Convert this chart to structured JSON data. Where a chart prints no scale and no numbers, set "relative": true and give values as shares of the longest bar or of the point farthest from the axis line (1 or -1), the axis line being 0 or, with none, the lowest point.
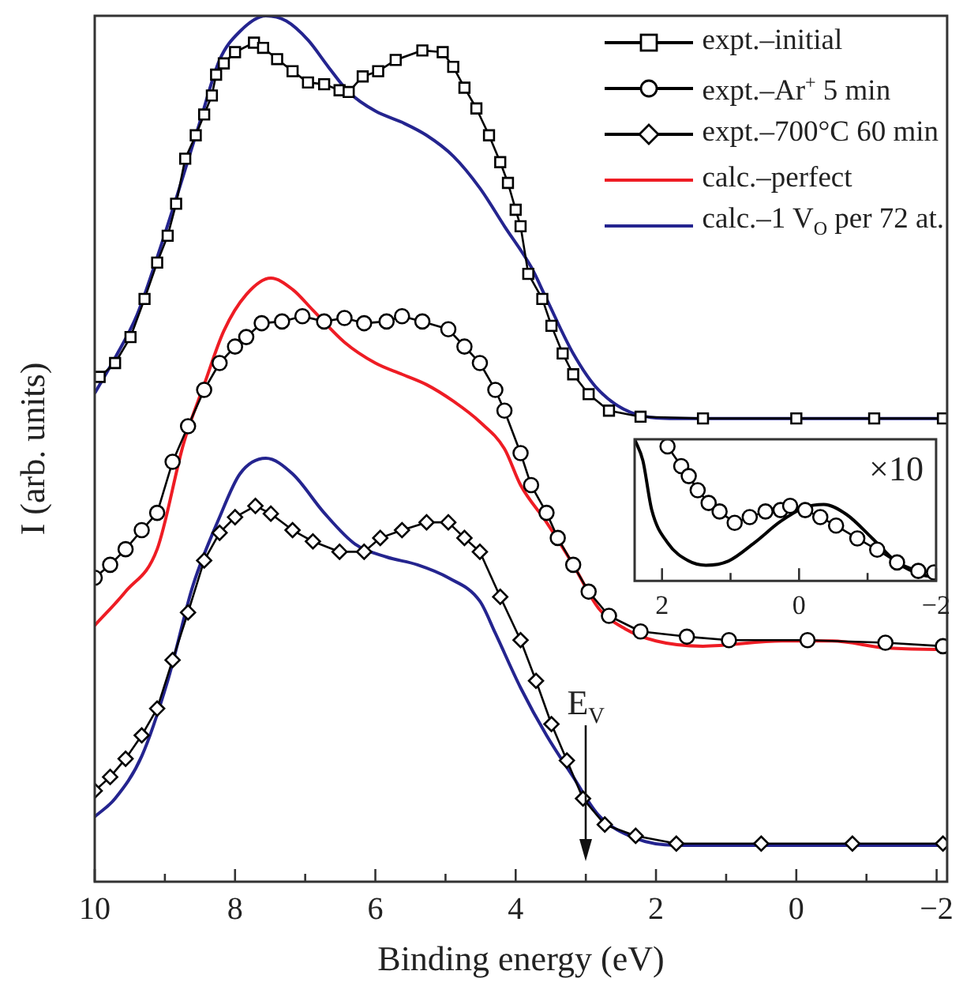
{
  "chart_data": [
    {
      "type": "line",
      "xlabel": "Binding energy (eV)",
      "ylabel": "I (arb. units)",
      "relative": true,
      "xlim": [
        10,
        -2.15
      ],
      "xticks": [
        10,
        {
          "value": 9,
          "label": null
        },
        8,
        {
          "value": 7,
          "label": null
        },
        6,
        {
          "value": 5,
          "label": null
        },
        4,
        {
          "value": 3,
          "label": null
        },
        2,
        {
          "value": 1,
          "label": null
        },
        0,
        {
          "value": -1,
          "label": null
        },
        -2
      ],
      "grid": false,
      "legend": "top right",
      "ref_lines": [
        {
          "axis": "x",
          "value": 3,
          "label": "E$_{V}$"
        }
      ],
      "series": [
        {
          "name": "expt.–initial",
          "color": "#000000",
          "marker": "square",
          "x": [
            9.93,
            9.71,
            9.49,
            9.29,
            9.11,
            8.96,
            8.84,
            8.71,
            8.56,
            8.44,
            8.33,
            8.27,
            8.16,
            8.0,
            7.73,
            7.6,
            7.4,
            7.18,
            6.96,
            6.73,
            6.51,
            6.38,
            6.18,
            5.96,
            5.71,
            5.33,
            5.04,
            4.89,
            4.73,
            4.56,
            4.38,
            4.22,
            4.11,
            4.0,
            3.93,
            3.82,
            3.62,
            3.49,
            3.33,
            3.18,
            2.96,
            2.67,
            2.22,
            1.33,
            0,
            -1.11,
            -2.09
          ],
          "values": [
            0.583,
            0.599,
            0.629,
            0.673,
            0.715,
            0.746,
            0.783,
            0.835,
            0.862,
            0.886,
            0.908,
            0.932,
            0.945,
            0.958,
            0.969,
            0.963,
            0.95,
            0.936,
            0.923,
            0.921,
            0.914,
            0.912,
            0.93,
            0.936,
            0.949,
            0.96,
            0.958,
            0.941,
            0.917,
            0.893,
            0.862,
            0.831,
            0.807,
            0.776,
            0.757,
            0.702,
            0.673,
            0.642,
            0.61,
            0.586,
            0.563,
            0.544,
            0.537,
            0.535,
            0.535,
            0.535,
            0.535
          ]
        },
        {
          "name": "expt.–Ar$^{+}$ 5 min",
          "color": "#000000",
          "marker": "circle",
          "x": [
            10,
            9.78,
            9.56,
            9.33,
            9.11,
            8.89,
            8.67,
            8.44,
            8.22,
            8.0,
            7.84,
            7.62,
            7.33,
            7.04,
            6.73,
            6.44,
            6.16,
            5.84,
            5.62,
            5.33,
            4.96,
            4.73,
            4.51,
            4.29,
            4.16,
            3.93,
            3.78,
            3.56,
            3.4,
            3.18,
            2.96,
            2.67,
            2.22,
            1.56,
            0.96,
            -0.16,
            -1.27,
            -2.09
          ],
          "values": [
            0.351,
            0.366,
            0.384,
            0.406,
            0.426,
            0.485,
            0.526,
            0.568,
            0.599,
            0.618,
            0.629,
            0.645,
            0.647,
            0.653,
            0.647,
            0.651,
            0.645,
            0.647,
            0.653,
            0.647,
            0.638,
            0.618,
            0.599,
            0.568,
            0.544,
            0.495,
            0.458,
            0.426,
            0.397,
            0.366,
            0.335,
            0.307,
            0.289,
            0.283,
            0.279,
            0.279,
            0.276,
            0.272
          ]
        },
        {
          "name": "expt.–700°C  60 min",
          "color": "#000000",
          "marker": "diamond",
          "x": [
            10,
            9.78,
            9.56,
            9.33,
            9.11,
            8.89,
            8.67,
            8.44,
            8.22,
            8.0,
            7.71,
            7.49,
            7.18,
            6.89,
            6.51,
            6.16,
            5.93,
            5.62,
            5.27,
            4.96,
            4.73,
            4.51,
            4.22,
            3.93,
            3.71,
            3.49,
            3.27,
            3.04,
            2.73,
            2.29,
            1.71,
            0.5,
            -0.8,
            -2.09
          ],
          "values": [
            0.105,
            0.121,
            0.142,
            0.169,
            0.2,
            0.256,
            0.311,
            0.371,
            0.403,
            0.421,
            0.434,
            0.425,
            0.406,
            0.393,
            0.381,
            0.381,
            0.397,
            0.406,
            0.415,
            0.415,
            0.397,
            0.381,
            0.329,
            0.279,
            0.232,
            0.182,
            0.14,
            0.096,
            0.066,
            0.053,
            0.044,
            0.044,
            0.044,
            0.044
          ]
        },
        {
          "name": "calc.–perfect",
          "color": "#ee1c24",
          "marker": "none",
          "x": [
            10,
            9.56,
            9.11,
            8.73,
            8.44,
            8.16,
            7.84,
            7.49,
            7.18,
            6.89,
            6.44,
            6.0,
            5.62,
            5.27,
            4.89,
            4.51,
            4.16,
            3.93,
            3.56,
            3.18,
            2.82,
            2.44,
            2.0,
            1.33,
            0.2,
            -0.51,
            -1.27,
            -2.09
          ],
          "values": [
            0.296,
            0.335,
            0.384,
            0.507,
            0.574,
            0.636,
            0.678,
            0.697,
            0.684,
            0.66,
            0.623,
            0.599,
            0.586,
            0.574,
            0.555,
            0.531,
            0.5,
            0.458,
            0.415,
            0.366,
            0.316,
            0.292,
            0.278,
            0.272,
            0.278,
            0.278,
            0.27,
            0.268
          ]
        },
        {
          "name": "calc.–1 V$_{O}$ per 72 at.",
          "color": "#24248f",
          "marker": "none",
          "x": [
            10,
            9.71,
            9.4,
            9.11,
            8.82,
            8.51,
            8.22,
            7.93,
            7.56,
            7.27,
            6.96,
            6.67,
            6.38,
            6.0,
            5.62,
            5.27,
            4.89,
            4.51,
            4.16,
            3.78,
            3.56,
            3.18,
            2.82,
            2.29,
            1.71,
            -2.09
          ],
          "values": [
            0.564,
            0.605,
            0.654,
            0.721,
            0.794,
            0.875,
            0.949,
            0.982,
            1.0,
            0.994,
            0.972,
            0.941,
            0.912,
            0.89,
            0.877,
            0.862,
            0.838,
            0.801,
            0.757,
            0.71,
            0.673,
            0.61,
            0.568,
            0.54,
            0.535,
            0.535
          ]
        },
        {
          "color": "#24248f",
          "marker": "none",
          "x": [
            10,
            9.71,
            9.33,
            8.96,
            8.6,
            8.22,
            7.93,
            7.56,
            7.18,
            6.73,
            6.29,
            5.84,
            5.4,
            4.96,
            4.51,
            4.29,
            3.93,
            3.56,
            3.18,
            2.82,
            2.29,
            1.71,
            -2.09
          ],
          "values": [
            0.075,
            0.096,
            0.145,
            0.232,
            0.342,
            0.421,
            0.471,
            0.489,
            0.471,
            0.426,
            0.39,
            0.375,
            0.366,
            0.351,
            0.324,
            0.287,
            0.224,
            0.169,
            0.121,
            0.077,
            0.05,
            0.042,
            0.042
          ]
        }
      ]
    },
    {
      "type": "line",
      "relative": true,
      "xlim": [
        2.4,
        -2
      ],
      "xticks": [
        2,
        {
          "value": 1,
          "label": null
        },
        0,
        {
          "value": -1,
          "label": null
        },
        -2
      ],
      "grid": false,
      "annotations": [
        "×10"
      ],
      "series": [
        {
          "color": "#000000",
          "marker": "circle",
          "x": [
            1.92,
            1.72,
            1.61,
            1.48,
            1.32,
            1.16,
            0.94,
            0.72,
            0.49,
            0.27,
            0.13,
            -0.09,
            -0.31,
            -0.54,
            -0.85,
            -1.14,
            -1.43,
            -1.74,
            -1.97
          ],
          "values": [
            0.95,
            0.81,
            0.74,
            0.64,
            0.55,
            0.49,
            0.41,
            0.45,
            0.49,
            0.5,
            0.53,
            0.5,
            0.45,
            0.39,
            0.3,
            0.22,
            0.13,
            0.07,
            0.06
          ]
        },
        {
          "color": "#000000",
          "marker": "none",
          "x": [
            2.4,
            2.28,
            2.15,
            1.92,
            1.61,
            1.36,
            1.03,
            0.65,
            0.27,
            -0.09,
            -0.36,
            -0.69,
            -1.07,
            -1.43,
            -1.81,
            -2.0
          ],
          "values": [
            1.0,
            0.85,
            0.5,
            0.27,
            0.14,
            0.11,
            0.14,
            0.27,
            0.42,
            0.52,
            0.54,
            0.47,
            0.3,
            0.13,
            0.04,
            0.03
          ]
        }
      ]
    }
  ]
}
